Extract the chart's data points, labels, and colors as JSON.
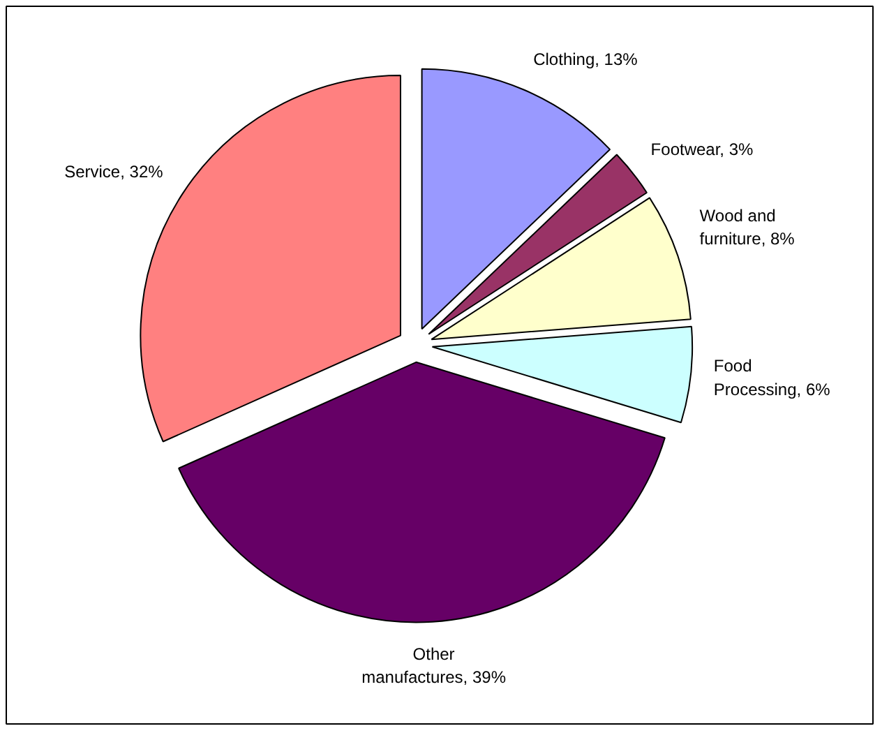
{
  "chart_data": {
    "type": "pie",
    "categories": [
      "Clothing",
      "Footwear",
      "Wood and furniture",
      "Food Processing",
      "Other manufactures",
      "Service"
    ],
    "values": [
      13,
      3,
      8,
      6,
      39,
      32
    ],
    "value_labels": [
      "13%",
      "3%",
      "8%",
      "6%",
      "39%",
      "32%"
    ],
    "colors": [
      "#9999ff",
      "#993366",
      "#ffffcc",
      "#ccffff",
      "#660066",
      "#ff8080"
    ]
  }
}
